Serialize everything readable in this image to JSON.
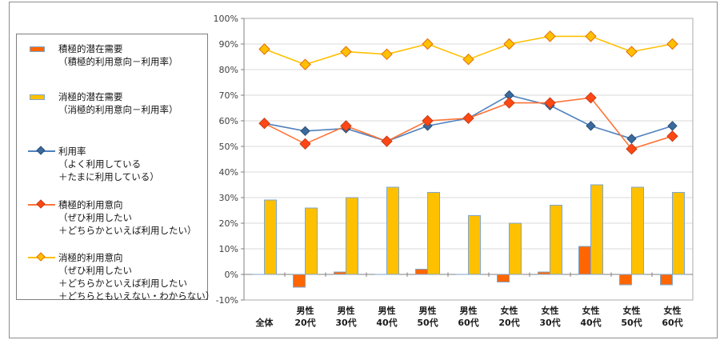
{
  "chart_data": {
    "type": "bar+line combo",
    "title": "",
    "categories": [
      [
        "全体"
      ],
      [
        "男性",
        "20代"
      ],
      [
        "男性",
        "30代"
      ],
      [
        "男性",
        "40代"
      ],
      [
        "男性",
        "50代"
      ],
      [
        "男性",
        "60代"
      ],
      [
        "女性",
        "20代"
      ],
      [
        "女性",
        "30代"
      ],
      [
        "女性",
        "40代"
      ],
      [
        "女性",
        "50代"
      ],
      [
        "女性",
        "60代"
      ]
    ],
    "y_axis": {
      "min": -10,
      "max": 100,
      "step": 10,
      "tick_labels": [
        "100%",
        "90%",
        "80%",
        "70%",
        "60%",
        "50%",
        "40%",
        "30%",
        "20%",
        "10%",
        "0%",
        "-10%"
      ]
    },
    "grid": "horizontal",
    "legend_position": "left",
    "series": [
      {
        "name": "積極的潜在需要（積極的利用意向－利用率）",
        "type": "bar",
        "fill": "#ff6600",
        "border": "#7ea6cf",
        "values": [
          0,
          -5,
          1,
          0,
          2,
          0,
          -3,
          1,
          11,
          -4,
          -4
        ]
      },
      {
        "name": "消極的潜在需要（消極的利用意向－利用率）",
        "type": "bar",
        "fill": "#ffc000",
        "border": "#7ea6cf",
        "values": [
          29,
          26,
          30,
          34,
          32,
          23,
          20,
          27,
          35,
          34,
          32
        ]
      },
      {
        "name": "利用率（よく利用している＋たまに利用している）",
        "type": "line",
        "line_color": "#4f81bd",
        "marker_fill": "#3a6a9e",
        "marker_border": "#2b4e74",
        "values": [
          59,
          56,
          57,
          52,
          58,
          61,
          70,
          66,
          58,
          53,
          58
        ]
      },
      {
        "name": "積極的利用意向（ぜひ利用したい＋どちらかといえば利用したい）",
        "type": "line",
        "line_color": "#ff7438",
        "marker_fill": "#ff4714",
        "marker_border": "#c03e1b",
        "values": [
          59,
          51,
          58,
          52,
          60,
          61,
          67,
          67,
          69,
          49,
          54
        ]
      },
      {
        "name": "消極的利用意向（ぜひ利用したい＋どちらかといえば利用したい＋どちらともいえない・わからない）",
        "type": "line",
        "line_color": "#ffc000",
        "marker_fill": "#ffc000",
        "marker_border": "#e36c0a",
        "values": [
          88,
          82,
          87,
          86,
          90,
          84,
          90,
          93,
          93,
          87,
          90
        ]
      }
    ]
  },
  "legend": {
    "items": [
      {
        "id": "positive-latent-demand",
        "marker": "bar",
        "fill": "#ff6600",
        "border": "#7ea6cf",
        "lines": [
          "積極的潜在需要",
          "（積極的利用意向－利用率）"
        ]
      },
      {
        "id": "negative-latent-demand",
        "marker": "bar",
        "fill": "#ffc000",
        "border": "#7ea6cf",
        "lines": [
          "消極的潜在需要",
          "（消極的利用意向－利用率）"
        ]
      },
      {
        "id": "usage-rate",
        "marker": "line-diamond",
        "line_color": "#4f81bd",
        "fill": "#3a6a9e",
        "border": "#2b4e74",
        "lines": [
          "利用率",
          "（よく利用している",
          "＋たまに利用している）"
        ]
      },
      {
        "id": "positive-intent",
        "marker": "line-diamond",
        "line_color": "#ff7438",
        "fill": "#ff4714",
        "border": "#c03e1b",
        "lines": [
          "積極的利用意向",
          "（ぜひ利用したい",
          "＋どちらかといえば利用したい）"
        ]
      },
      {
        "id": "negative-intent",
        "marker": "line-diamond",
        "line_color": "#ffc000",
        "fill": "#ffc000",
        "border": "#e36c0a",
        "lines": [
          "消極的利用意向",
          "（ぜひ利用したい",
          "＋どちらかといえば利用したい",
          "＋どちらともいえない・わからない）"
        ]
      }
    ]
  },
  "colors": {
    "gridline": "#d9d9d9",
    "plot_border": "#ababab",
    "axis": "#808080",
    "tick_text": "#404040",
    "category_text": "#1a1a1a"
  }
}
